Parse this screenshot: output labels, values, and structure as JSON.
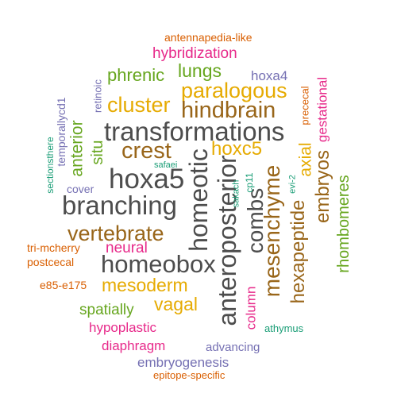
{
  "palette": {
    "gray": "#4d4d4d",
    "brown": "#99661a",
    "orange": "#d95f02",
    "teal": "#1b9e77",
    "purple": "#7570b3",
    "magenta": "#e7298a",
    "green": "#66a61e",
    "gold": "#e6ab02"
  },
  "words": [
    {
      "text": "antennapedia-like",
      "color": "orange"
    },
    {
      "text": "hybridization",
      "color": "magenta"
    },
    {
      "text": "phrenic",
      "color": "green"
    },
    {
      "text": "lungs",
      "color": "green"
    },
    {
      "text": "hoxa4",
      "color": "purple"
    },
    {
      "text": "paralogous",
      "color": "gold"
    },
    {
      "text": "cluster",
      "color": "gold"
    },
    {
      "text": "hindbrain",
      "color": "brown"
    },
    {
      "text": "transformations",
      "color": "gray"
    },
    {
      "text": "crest",
      "color": "brown"
    },
    {
      "text": "hoxc5",
      "color": "gold"
    },
    {
      "text": "hoxa5",
      "color": "gray"
    },
    {
      "text": "branching",
      "color": "gray"
    },
    {
      "text": "safaei",
      "color": "teal"
    },
    {
      "text": "cover",
      "color": "purple"
    },
    {
      "text": "vertebrate",
      "color": "brown"
    },
    {
      "text": "neural",
      "color": "magenta"
    },
    {
      "text": "tri-mcherry",
      "color": "orange"
    },
    {
      "text": "postcecal",
      "color": "orange"
    },
    {
      "text": "homeobox",
      "color": "gray"
    },
    {
      "text": "mesoderm",
      "color": "gold"
    },
    {
      "text": "e85-e175",
      "color": "orange"
    },
    {
      "text": "spatially",
      "color": "green"
    },
    {
      "text": "vagal",
      "color": "gold"
    },
    {
      "text": "hypoplastic",
      "color": "magenta"
    },
    {
      "text": "diaphragm",
      "color": "magenta"
    },
    {
      "text": "advancing",
      "color": "purple"
    },
    {
      "text": "athymus",
      "color": "teal"
    },
    {
      "text": "embryogenesis",
      "color": "purple"
    },
    {
      "text": "epitope-specific",
      "color": "orange"
    },
    {
      "text": "homeotic",
      "color": "gray"
    },
    {
      "text": "anteroposterior",
      "color": "gray"
    },
    {
      "text": "combs",
      "color": "gray"
    },
    {
      "text": "mesenchyme",
      "color": "brown"
    },
    {
      "text": "hexapeptide",
      "color": "brown"
    },
    {
      "text": "axial",
      "color": "gold"
    },
    {
      "text": "embryos",
      "color": "brown"
    },
    {
      "text": "rhombomeres",
      "color": "green"
    },
    {
      "text": "gestational",
      "color": "magenta"
    },
    {
      "text": "prececal",
      "color": "orange"
    },
    {
      "text": "evi-2",
      "color": "teal"
    },
    {
      "text": "cp11",
      "color": "teal"
    },
    {
      "text": "sakach",
      "color": "teal"
    },
    {
      "text": "column",
      "color": "magenta"
    },
    {
      "text": "retinoic",
      "color": "purple"
    },
    {
      "text": "temporallycd1",
      "color": "purple"
    },
    {
      "text": "sectionsthere",
      "color": "teal"
    },
    {
      "text": "anterior",
      "color": "green"
    },
    {
      "text": "situ",
      "color": "green"
    }
  ]
}
